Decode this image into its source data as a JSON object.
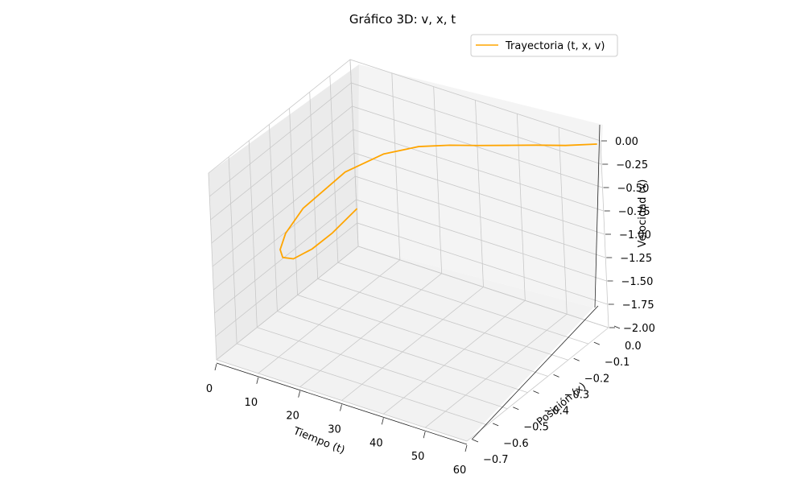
{
  "chart_data": {
    "type": "line",
    "projection": "3d",
    "title": "Gráfico 3D: v, x, t",
    "xlabel": "Tiempo (t)",
    "ylabel": "Posición (x)",
    "zlabel": "Velocidad (v)",
    "xlim": [
      0,
      60
    ],
    "ylim": [
      -0.7,
      0.0
    ],
    "zlim": [
      -2.0,
      0.0
    ],
    "xticks": [
      "0",
      "10",
      "20",
      "30",
      "40",
      "50",
      "60"
    ],
    "yticks": [
      "−0.7",
      "−0.6",
      "−0.5",
      "−0.4",
      "−0.3",
      "−0.2",
      "−0.1",
      "0.0"
    ],
    "zticks": [
      "−2.00",
      "−1.75",
      "−1.50",
      "−1.25",
      "−1.00",
      "−0.75",
      "−0.50",
      "−0.25",
      "0.00"
    ],
    "grid": true,
    "legend_position": "top-right",
    "series": [
      {
        "name": "Trayectoria (t, x, v)",
        "color": "#ffa500",
        "points": [
          {
            "t": 0,
            "x": 0.0,
            "v": -1.6
          },
          {
            "t": 2,
            "x": -0.16,
            "v": -1.55
          },
          {
            "t": 4,
            "x": -0.3,
            "v": -1.45
          },
          {
            "t": 6,
            "x": -0.43,
            "v": -1.3
          },
          {
            "t": 8,
            "x": -0.52,
            "v": -1.1
          },
          {
            "t": 10,
            "x": -0.57,
            "v": -0.9
          },
          {
            "t": 12,
            "x": -0.58,
            "v": -0.68
          },
          {
            "t": 15,
            "x": -0.55,
            "v": -0.42
          },
          {
            "t": 20,
            "x": -0.44,
            "v": -0.15
          },
          {
            "t": 25,
            "x": -0.35,
            "v": -0.04
          },
          {
            "t": 30,
            "x": -0.28,
            "v": -0.01
          },
          {
            "t": 35,
            "x": -0.23,
            "v": -0.01
          },
          {
            "t": 40,
            "x": -0.19,
            "v": -0.01
          },
          {
            "t": 45,
            "x": -0.15,
            "v": -0.005
          },
          {
            "t": 50,
            "x": -0.11,
            "v": 0.0
          },
          {
            "t": 55,
            "x": -0.07,
            "v": 0.0
          },
          {
            "t": 60,
            "x": -0.02,
            "v": 0.0
          }
        ]
      }
    ]
  }
}
